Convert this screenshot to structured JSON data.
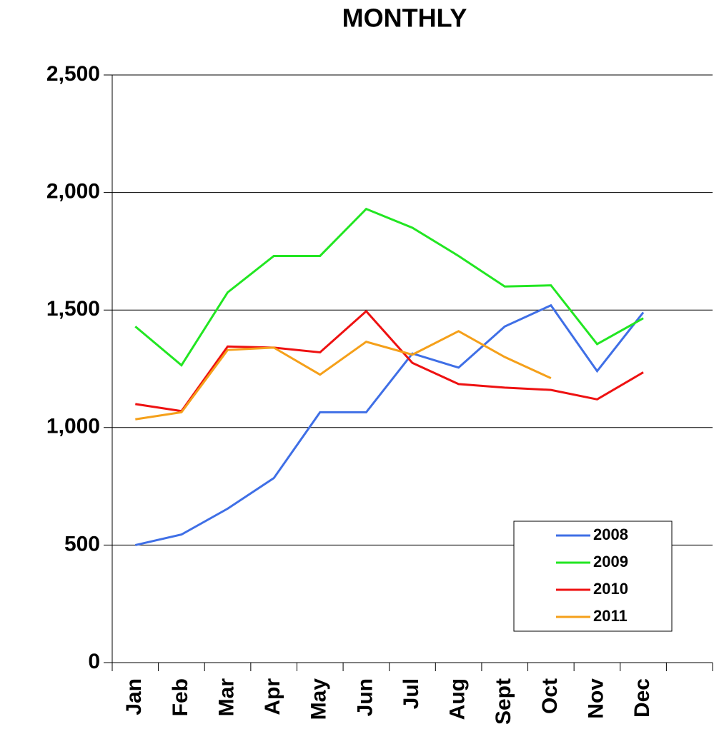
{
  "chart_data": {
    "type": "line",
    "title": "MONTHLY",
    "categories": [
      "Jan",
      "Feb",
      "Mar",
      "Apr",
      "May",
      "Jun",
      "Jul",
      "Aug",
      "Sept",
      "Oct",
      "Nov",
      "Dec",
      null
    ],
    "series": [
      {
        "name": "2008",
        "color": "#3f6fe6",
        "values": [
          500,
          545,
          655,
          785,
          1065,
          1065,
          1315,
          1255,
          1430,
          1520,
          1240,
          1490,
          null
        ]
      },
      {
        "name": "2009",
        "color": "#22e622",
        "values": [
          1430,
          1265,
          1575,
          1730,
          1730,
          1930,
          1850,
          1730,
          1600,
          1605,
          1355,
          1465,
          null
        ]
      },
      {
        "name": "2010",
        "color": "#ee1111",
        "values": [
          1100,
          1070,
          1345,
          1340,
          1320,
          1495,
          1275,
          1185,
          1170,
          1160,
          1120,
          1235,
          null
        ]
      },
      {
        "name": "2011",
        "color": "#f5a01a",
        "values": [
          1035,
          1065,
          1330,
          1340,
          1225,
          1365,
          1310,
          1410,
          1300,
          1210,
          null,
          null,
          null
        ]
      }
    ],
    "ylim": [
      0,
      2500
    ],
    "yticks": [
      0,
      500,
      {
        "value": 1000,
        "label": "1,000"
      },
      {
        "value": 1500,
        "label": "1,500"
      },
      {
        "value": 2000,
        "label": "2,000"
      },
      {
        "value": 2500,
        "label": "2,500"
      }
    ],
    "grid": true,
    "legend": "lower right"
  }
}
